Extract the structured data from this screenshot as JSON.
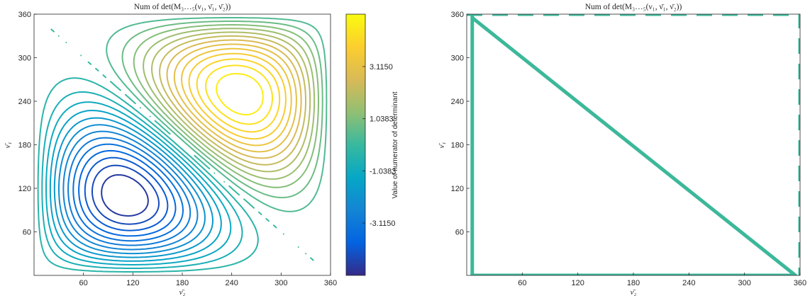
{
  "chart_data": [
    {
      "type": "contour",
      "title": "Num of det(M₃…₅(ν₁, ν̄₁, ν̄₂))",
      "xlabel": "ν̄₂",
      "ylabel": "ν̄₁",
      "xlim": [
        0,
        360
      ],
      "ylim": [
        0,
        360
      ],
      "xticks": [
        60,
        120,
        180,
        240,
        300,
        360
      ],
      "yticks": [
        60,
        120,
        180,
        240,
        300,
        360
      ],
      "grid": false,
      "contour_levels": 27,
      "function_extrema": {
        "min": {
          "x": 125,
          "y": 125
        },
        "max": {
          "x": 240,
          "y": 240
        }
      },
      "colormap": "parula",
      "colorbar": {
        "label": "Value of numerator of determinant",
        "range": [
          -5.2,
          5.2
        ],
        "ticks": [
          -3.115,
          -1.0383,
          1.0383,
          3.115
        ],
        "tick_labels": [
          "-3.1150",
          "-1.0383",
          "1.0383",
          "3.1150"
        ]
      }
    },
    {
      "type": "line",
      "title": "Num of det(M₃…₅(ν₁, ν̄₁, ν̄₂))",
      "xlabel": "ν̄₂",
      "ylabel": "ν̄₁",
      "xlim": [
        0,
        360
      ],
      "ylim": [
        0,
        360
      ],
      "xticks": [
        60,
        120,
        180,
        240,
        300,
        360
      ],
      "yticks": [
        60,
        120,
        180,
        240,
        300,
        360
      ],
      "grid": false,
      "line_color": "#3cb89a",
      "series": [
        {
          "style": "solid",
          "x": [
            6,
            6,
            355,
            6
          ],
          "y": [
            360,
            0,
            0,
            355
          ]
        },
        {
          "style": "dashed",
          "x": [
            0,
            360,
            360
          ],
          "y": [
            360,
            360,
            0
          ]
        }
      ]
    }
  ],
  "colors": {
    "line": "#3cb89a",
    "axis": "#262626"
  }
}
